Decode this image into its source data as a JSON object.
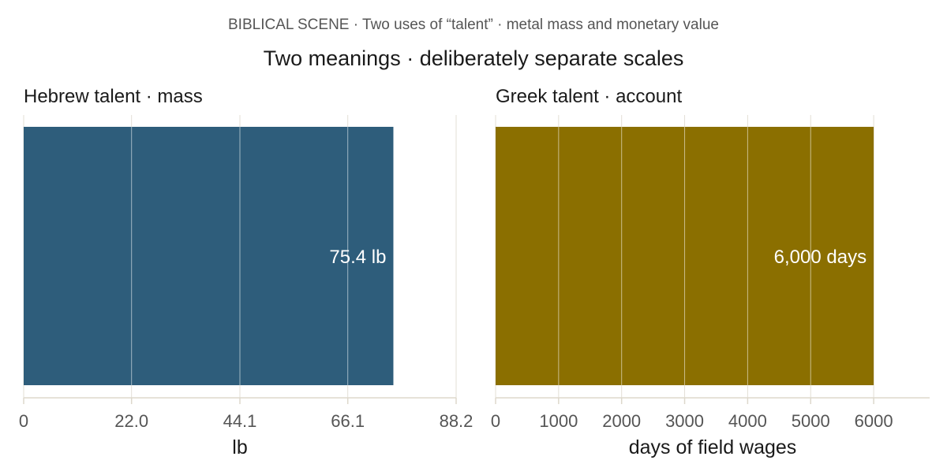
{
  "header": {
    "supertitle": "BIBLICAL SCENE · Two uses of “talent” · metal mass and monetary value",
    "title": "Two meanings · deliberately separate scales"
  },
  "chart_data": [
    {
      "type": "bar",
      "orientation": "horizontal",
      "title": "Hebrew talent · mass",
      "xlabel": "lb",
      "ylabel": "",
      "value": 75.4,
      "value_label": "75.4 lb",
      "xlim": [
        0,
        88.2
      ],
      "ticks": [
        0,
        22.0,
        44.1,
        66.1,
        88.2
      ],
      "tick_labels": [
        "0",
        "22.0",
        "44.1",
        "66.1",
        "88.2"
      ],
      "bar_color": "#2e5d7b",
      "grid": true
    },
    {
      "type": "bar",
      "orientation": "horizontal",
      "title": "Greek talent · account",
      "xlabel": "days of field wages",
      "ylabel": "",
      "value": 6000,
      "value_label": "6,000 days",
      "xlim": [
        0,
        6600
      ],
      "ticks": [
        0,
        1000,
        2000,
        3000,
        4000,
        5000,
        6000
      ],
      "tick_labels": [
        "0",
        "1000",
        "2000",
        "3000",
        "4000",
        "5000",
        "6000"
      ],
      "bar_color": "#8b6f00",
      "grid": true
    }
  ],
  "colors": {
    "grid": "#e3dfd6",
    "axis": "#ddd8cc",
    "text": "#1a1a1a",
    "muted_text": "#555555"
  }
}
